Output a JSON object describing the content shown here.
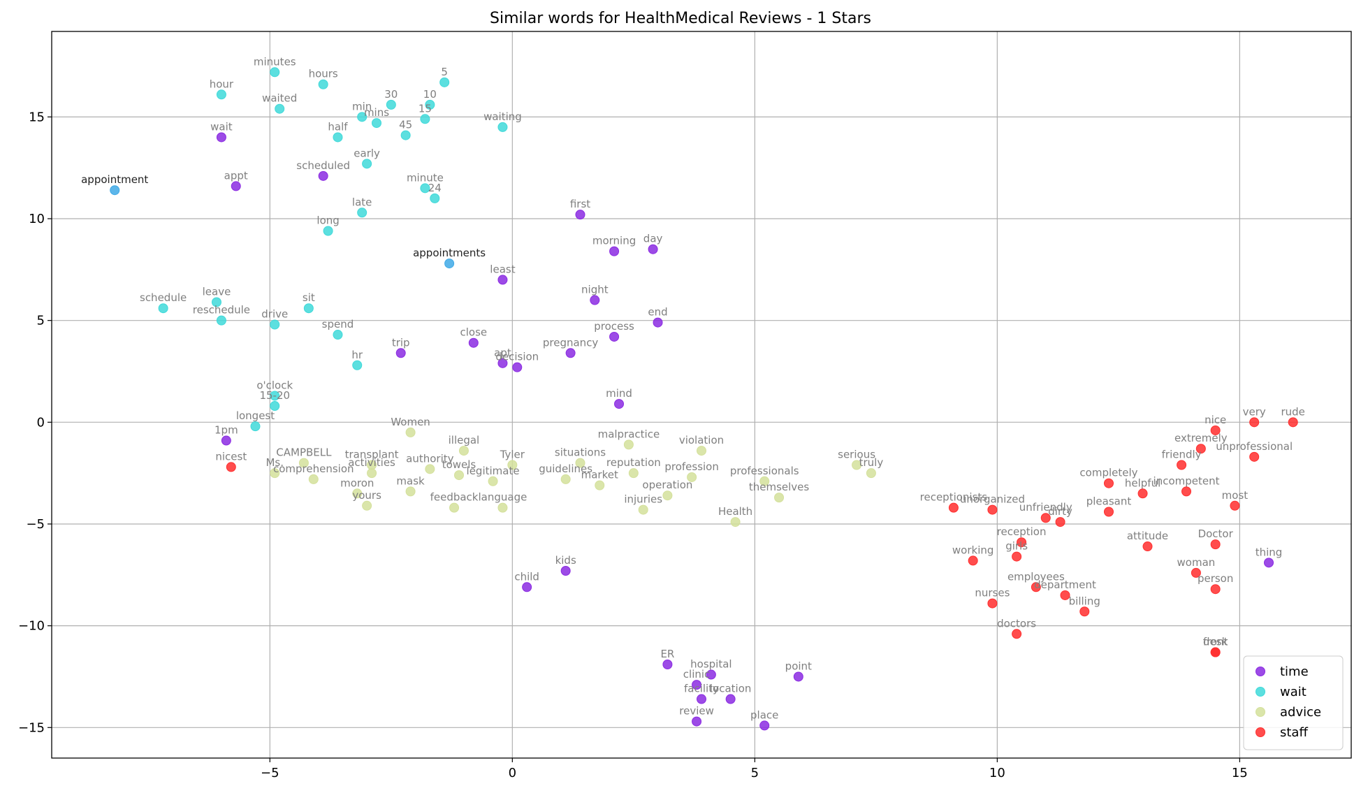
{
  "chart_data": {
    "type": "scatter",
    "title": "Similar words for HealthMedical Reviews - 1 Stars",
    "xlabel": "",
    "ylabel": "",
    "xlim": [
      -9.5,
      17.3
    ],
    "ylim": [
      -16.5,
      19.2
    ],
    "x_ticks": [
      -5,
      0,
      5,
      10,
      15
    ],
    "y_ticks": [
      -15,
      -10,
      -5,
      0,
      5,
      10,
      15
    ],
    "x_tick_labels": [
      "−5",
      "0",
      "5",
      "10",
      "15"
    ],
    "y_tick_labels": [
      "−15",
      "−10",
      "−5",
      "0",
      "5",
      "10",
      "15"
    ],
    "grid": true,
    "legend_position": "bottom-right",
    "series": [
      {
        "name": "time",
        "color": "#8b2be2",
        "points": [
          {
            "label": "wait",
            "x": -6.0,
            "y": 14.0
          },
          {
            "label": "appt",
            "x": -5.7,
            "y": 11.6
          },
          {
            "label": "scheduled",
            "x": -3.9,
            "y": 12.1
          },
          {
            "label": "first",
            "x": 1.4,
            "y": 10.2
          },
          {
            "label": "morning",
            "x": 2.1,
            "y": 8.4
          },
          {
            "label": "day",
            "x": 2.9,
            "y": 8.5
          },
          {
            "label": "least",
            "x": -0.2,
            "y": 7.0
          },
          {
            "label": "night",
            "x": 1.7,
            "y": 6.0
          },
          {
            "label": "end",
            "x": 3.0,
            "y": 4.9
          },
          {
            "label": "process",
            "x": 2.1,
            "y": 4.2
          },
          {
            "label": "close",
            "x": -0.8,
            "y": 3.9
          },
          {
            "label": "trip",
            "x": -2.3,
            "y": 3.4
          },
          {
            "label": "pregnancy",
            "x": 1.2,
            "y": 3.4
          },
          {
            "label": "apt",
            "x": -0.2,
            "y": 2.9
          },
          {
            "label": "decision",
            "x": 0.1,
            "y": 2.7
          },
          {
            "label": "mind",
            "x": 2.2,
            "y": 0.9
          },
          {
            "label": "1pm",
            "x": -5.9,
            "y": -0.9
          },
          {
            "label": "kids",
            "x": 1.1,
            "y": -7.3
          },
          {
            "label": "child",
            "x": 0.3,
            "y": -8.1
          },
          {
            "label": "ER",
            "x": 3.2,
            "y": -11.9
          },
          {
            "label": "hospital",
            "x": 4.1,
            "y": -12.4
          },
          {
            "label": "clinic",
            "x": 3.8,
            "y": -12.9
          },
          {
            "label": "facility",
            "x": 3.9,
            "y": -13.6
          },
          {
            "label": "location",
            "x": 4.5,
            "y": -13.6
          },
          {
            "label": "point",
            "x": 5.9,
            "y": -12.5
          },
          {
            "label": "review",
            "x": 3.8,
            "y": -14.7
          },
          {
            "label": "place",
            "x": 5.2,
            "y": -14.9
          },
          {
            "label": "thing",
            "x": 15.6,
            "y": -6.9
          }
        ]
      },
      {
        "name": "wait",
        "color": "#3fd9d9",
        "points": [
          {
            "label": "minutes",
            "x": -4.9,
            "y": 17.2
          },
          {
            "label": "hours",
            "x": -3.9,
            "y": 16.6
          },
          {
            "label": "hour",
            "x": -6.0,
            "y": 16.1
          },
          {
            "label": "5",
            "x": -1.4,
            "y": 16.7
          },
          {
            "label": "waited",
            "x": -4.8,
            "y": 15.4
          },
          {
            "label": "30",
            "x": -2.5,
            "y": 15.6
          },
          {
            "label": "10",
            "x": -1.7,
            "y": 15.6
          },
          {
            "label": "min",
            "x": -3.1,
            "y": 15.0
          },
          {
            "label": "mins",
            "x": -2.8,
            "y": 14.7
          },
          {
            "label": "15",
            "x": -1.8,
            "y": 14.9
          },
          {
            "label": "waiting",
            "x": -0.2,
            "y": 14.5
          },
          {
            "label": "half",
            "x": -3.6,
            "y": 14.0
          },
          {
            "label": "45",
            "x": -2.2,
            "y": 14.1
          },
          {
            "label": "early",
            "x": -3.0,
            "y": 12.7
          },
          {
            "label": "minute",
            "x": -1.8,
            "y": 11.5
          },
          {
            "label": "24",
            "x": -1.6,
            "y": 11.0
          },
          {
            "label": "late",
            "x": -3.1,
            "y": 10.3
          },
          {
            "label": "long",
            "x": -3.8,
            "y": 9.4
          },
          {
            "label": "schedule",
            "x": -7.2,
            "y": 5.6
          },
          {
            "label": "leave",
            "x": -6.1,
            "y": 5.9
          },
          {
            "label": "reschedule",
            "x": -6.0,
            "y": 5.0
          },
          {
            "label": "sit",
            "x": -4.2,
            "y": 5.6
          },
          {
            "label": "drive",
            "x": -4.9,
            "y": 4.8
          },
          {
            "label": "spend",
            "x": -3.6,
            "y": 4.3
          },
          {
            "label": "hr",
            "x": -3.2,
            "y": 2.8
          },
          {
            "label": "o'clock",
            "x": -4.9,
            "y": 1.3
          },
          {
            "label": "15-20",
            "x": -4.9,
            "y": 0.8
          },
          {
            "label": "longest",
            "x": -5.3,
            "y": -0.2
          }
        ]
      },
      {
        "name": "advice",
        "color": "#d4e09b",
        "points": [
          {
            "label": "Women",
            "x": -2.1,
            "y": -0.5
          },
          {
            "label": "illegal",
            "x": -1.0,
            "y": -1.4
          },
          {
            "label": "malpractice",
            "x": 2.4,
            "y": -1.1
          },
          {
            "label": "violation",
            "x": 3.9,
            "y": -1.4
          },
          {
            "label": "CAMPBELL",
            "x": -4.3,
            "y": -2.0
          },
          {
            "label": "transplant",
            "x": -2.9,
            "y": -2.1
          },
          {
            "label": "Ms.",
            "x": -4.9,
            "y": -2.5
          },
          {
            "label": "comprehension",
            "x": -4.1,
            "y": -2.8
          },
          {
            "label": "activities",
            "x": -2.9,
            "y": -2.5
          },
          {
            "label": "authority",
            "x": -1.7,
            "y": -2.3
          },
          {
            "label": "towels",
            "x": -1.1,
            "y": -2.6
          },
          {
            "label": "Tyler",
            "x": 0.0,
            "y": -2.1
          },
          {
            "label": "situations",
            "x": 1.4,
            "y": -2.0
          },
          {
            "label": "legitimate",
            "x": -0.4,
            "y": -2.9
          },
          {
            "label": "guidelines",
            "x": 1.1,
            "y": -2.8
          },
          {
            "label": "market",
            "x": 1.8,
            "y": -3.1
          },
          {
            "label": "reputation",
            "x": 2.5,
            "y": -2.5
          },
          {
            "label": "profession",
            "x": 3.7,
            "y": -2.7
          },
          {
            "label": "professionals",
            "x": 5.2,
            "y": -2.9
          },
          {
            "label": "operation",
            "x": 3.2,
            "y": -3.6
          },
          {
            "label": "themselves",
            "x": 5.5,
            "y": -3.7
          },
          {
            "label": "serious",
            "x": 7.1,
            "y": -2.1
          },
          {
            "label": "truly",
            "x": 7.4,
            "y": -2.5
          },
          {
            "label": "moron",
            "x": -3.2,
            "y": -3.5
          },
          {
            "label": "mask",
            "x": -2.1,
            "y": -3.4
          },
          {
            "label": "yours",
            "x": -3.0,
            "y": -4.1
          },
          {
            "label": "feedback",
            "x": -1.2,
            "y": -4.2
          },
          {
            "label": "language",
            "x": -0.2,
            "y": -4.2
          },
          {
            "label": "injuries",
            "x": 2.7,
            "y": -4.3
          },
          {
            "label": "Health",
            "x": 4.6,
            "y": -4.9
          }
        ]
      },
      {
        "name": "staff",
        "color": "#ff2e2e",
        "points": [
          {
            "label": "nicest",
            "x": -5.8,
            "y": -2.2
          },
          {
            "label": "very",
            "x": 15.3,
            "y": 0.0
          },
          {
            "label": "rude",
            "x": 16.1,
            "y": 0.0
          },
          {
            "label": "nice",
            "x": 14.5,
            "y": -0.4
          },
          {
            "label": "extremely",
            "x": 14.2,
            "y": -1.3
          },
          {
            "label": "unprofessional",
            "x": 15.3,
            "y": -1.7
          },
          {
            "label": "friendly",
            "x": 13.8,
            "y": -2.1
          },
          {
            "label": "completely",
            "x": 12.3,
            "y": -3.0
          },
          {
            "label": "helpful",
            "x": 13.0,
            "y": -3.5
          },
          {
            "label": "incompetent",
            "x": 13.9,
            "y": -3.4
          },
          {
            "label": "most",
            "x": 14.9,
            "y": -4.1
          },
          {
            "label": "receptionists",
            "x": 9.1,
            "y": -4.2
          },
          {
            "label": "unorganized",
            "x": 9.9,
            "y": -4.3
          },
          {
            "label": "unfriendly",
            "x": 11.0,
            "y": -4.7
          },
          {
            "label": "dirty",
            "x": 11.3,
            "y": -4.9
          },
          {
            "label": "pleasant",
            "x": 12.3,
            "y": -4.4
          },
          {
            "label": "reception",
            "x": 10.5,
            "y": -5.9
          },
          {
            "label": "girls",
            "x": 10.4,
            "y": -6.6
          },
          {
            "label": "working",
            "x": 9.5,
            "y": -6.8
          },
          {
            "label": "attitude",
            "x": 13.1,
            "y": -6.1
          },
          {
            "label": "Doctor",
            "x": 14.5,
            "y": -6.0
          },
          {
            "label": "woman",
            "x": 14.1,
            "y": -7.4
          },
          {
            "label": "employees",
            "x": 10.8,
            "y": -8.1
          },
          {
            "label": "department",
            "x": 11.4,
            "y": -8.5
          },
          {
            "label": "nurses",
            "x": 9.9,
            "y": -8.9
          },
          {
            "label": "billing",
            "x": 11.8,
            "y": -9.3
          },
          {
            "label": "person",
            "x": 14.5,
            "y": -8.2
          },
          {
            "label": "doctors",
            "x": 10.4,
            "y": -10.4
          },
          {
            "label": "front",
            "x": 14.5,
            "y": -11.3
          },
          {
            "label": "desk",
            "x": 14.5,
            "y": -11.3
          }
        ]
      },
      {
        "name": "",
        "color": "#3fa9e6",
        "points": [
          {
            "label": "appointment",
            "x": -8.2,
            "y": 11.4
          },
          {
            "label": "appointments",
            "x": -1.3,
            "y": 7.8
          }
        ]
      }
    ]
  }
}
